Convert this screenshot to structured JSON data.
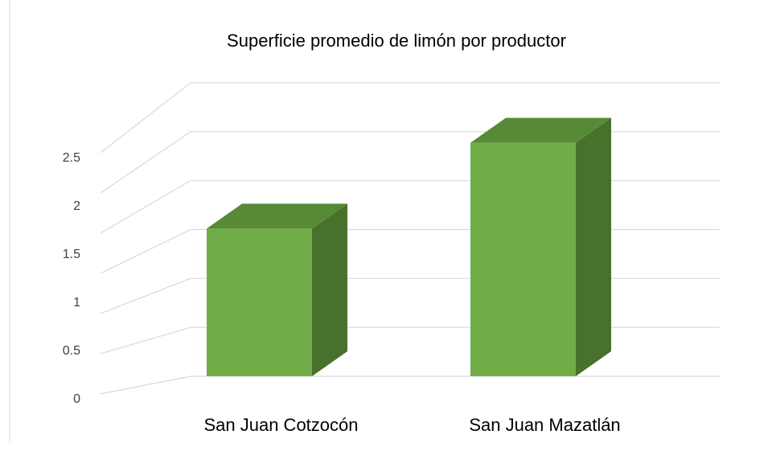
{
  "chart_data": {
    "type": "bar3d",
    "title": "Superficie promedio de limón por productor",
    "categories": [
      "San Juan Cotzocón",
      "San Juan Mazatlán"
    ],
    "values": [
      1.53,
      2.42
    ],
    "color": "#70ad47",
    "ylim": [
      0,
      3
    ],
    "yticks": [
      0,
      0.5,
      1,
      1.5,
      2,
      2.5
    ],
    "grid": true
  }
}
